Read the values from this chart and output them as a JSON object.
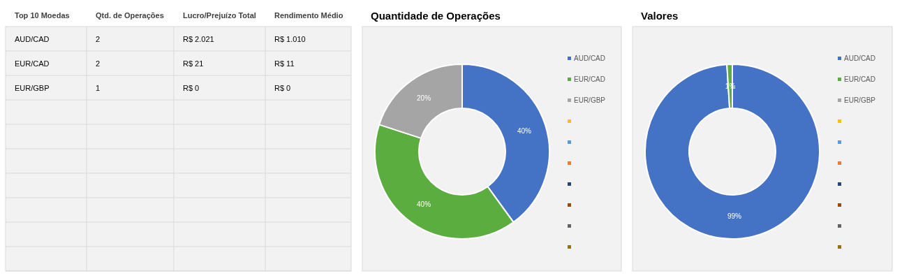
{
  "chart_data": [
    {
      "type": "other",
      "data_labels": true,
      "xlabel": "Top 10 Moedas",
      "categories": [
        "AUD/CAD",
        "EUR/CAD",
        "EUR/GBP",
        null,
        null,
        null,
        null,
        null,
        null,
        null
      ],
      "series": [
        {
          "name": "Qtd. de Operações",
          "values": [
            2,
            2,
            1,
            null,
            null,
            null,
            null,
            null,
            null,
            null
          ]
        },
        {
          "name": "Lucro/Prejuízo Total",
          "values": [
            2021,
            21,
            0,
            null,
            null,
            null,
            null,
            null,
            null,
            null
          ],
          "value_labels": [
            "R$ 2.021",
            "R$ 21",
            "R$ 0",
            null,
            null,
            null,
            null,
            null,
            null,
            null
          ]
        },
        {
          "name": "Rendimento Médio",
          "values": [
            1010,
            11,
            0,
            null,
            null,
            null,
            null,
            null,
            null,
            null
          ],
          "value_labels": [
            "R$ 1.010",
            "R$ 11",
            "R$ 0",
            null,
            null,
            null,
            null,
            null,
            null,
            null
          ]
        }
      ]
    },
    {
      "type": "donut",
      "title": "Quantidade de Operações",
      "legend": "right",
      "categories": [
        "AUD/CAD",
        "EUR/CAD",
        "EUR/GBP",
        null,
        null,
        null,
        null,
        null,
        null,
        null
      ],
      "values": [
        40,
        40,
        20,
        0,
        0,
        0,
        0,
        0,
        0,
        0
      ],
      "colors": [
        "#4472c4",
        "#5aad3e",
        "#a5a5a5",
        "#ffc000",
        "#5b9bd5",
        "#ed7d31",
        "#264478",
        "#9e480e",
        "#636363",
        "#997300"
      ],
      "value_labels": [
        "40%",
        "40%",
        "20%",
        null,
        null,
        null,
        null,
        null,
        null,
        null
      ]
    },
    {
      "type": "donut",
      "title": "Valores",
      "legend": "right",
      "categories": [
        "AUD/CAD",
        "EUR/CAD",
        "EUR/GBP",
        null,
        null,
        null,
        null,
        null,
        null,
        null
      ],
      "values": [
        99,
        1,
        0,
        0,
        0,
        0,
        0,
        0,
        0,
        0
      ],
      "colors": [
        "#4472c4",
        "#5aad3e",
        "#a5a5a5",
        "#ffc000",
        "#5b9bd5",
        "#ed7d31",
        "#264478",
        "#9e480e",
        "#636363",
        "#997300"
      ],
      "value_labels": [
        "99%",
        "1%",
        null,
        null,
        null,
        null,
        null,
        null,
        null,
        null
      ]
    }
  ]
}
